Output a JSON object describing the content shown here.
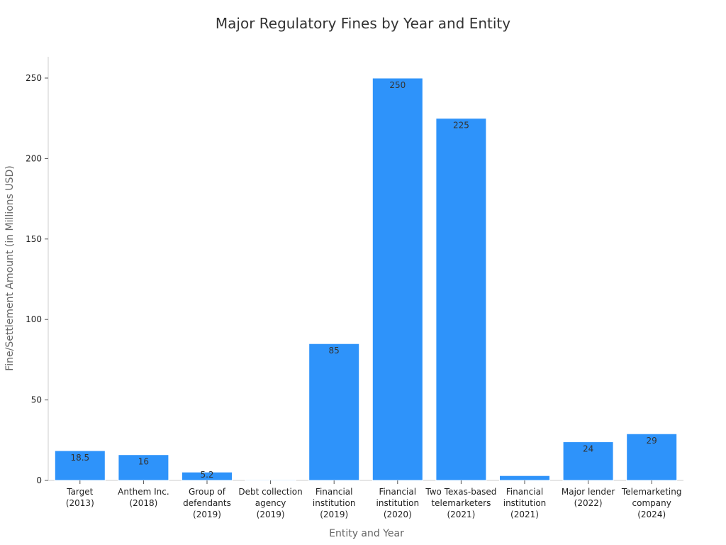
{
  "chart_data": {
    "type": "bar",
    "title": "Major Regulatory Fines by Year and Entity",
    "xlabel": "Entity and Year",
    "ylabel": "Fine/Settlement Amount (in Millions USD)",
    "ylim": [
      0,
      262
    ],
    "yticks": [
      0,
      50,
      100,
      150,
      200,
      250
    ],
    "categories": [
      [
        "Target",
        "(2013)"
      ],
      [
        "Anthem Inc.",
        "(2018)"
      ],
      [
        "Group of",
        "defendants",
        "(2019)"
      ],
      [
        "Debt collection",
        "agency",
        "(2019)"
      ],
      [
        "Financial",
        "institution",
        "(2019)"
      ],
      [
        "Financial",
        "institution",
        "(2020)"
      ],
      [
        "Two Texas-based",
        "telemarketers",
        "(2021)"
      ],
      [
        "Financial",
        "institution",
        "(2021)"
      ],
      [
        "Major lender",
        "(2022)"
      ],
      [
        "Telemarketing",
        "company",
        "(2024)"
      ]
    ],
    "values": [
      18.5,
      16,
      5.2,
      0.5,
      85,
      250,
      225,
      3,
      24,
      29
    ],
    "data_labels": [
      "18.5",
      "16",
      "5.2",
      "",
      "85",
      "250",
      "225",
      "",
      "24",
      "29"
    ],
    "grid": false,
    "legend": "none",
    "bar_color": "#2e93fa"
  }
}
